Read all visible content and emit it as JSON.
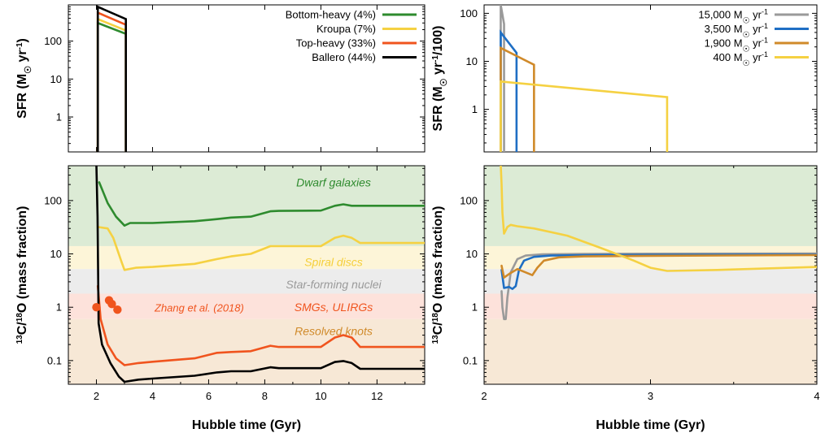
{
  "chart_data": [
    {
      "id": "top-left",
      "type": "line",
      "ylabel": "SFR (M☉ yr⁻¹)",
      "yscale": "log",
      "xlim": [
        1.0,
        13.7
      ],
      "ylim": [
        0.12,
        900
      ],
      "yticks": [
        {
          "v": 1,
          "label": "1"
        },
        {
          "v": 10,
          "label": "10"
        },
        {
          "v": 100,
          "label": "100"
        }
      ],
      "legend": {
        "position": "top-right",
        "entries": [
          {
            "label": "Bottom-heavy (4%)",
            "color": "#2e8b2e"
          },
          {
            "label": "Kroupa (7%)",
            "color": "#f5d142"
          },
          {
            "label": "Top-heavy (33%)",
            "color": "#f0541e"
          },
          {
            "label": "Ballero (44%)",
            "color": "#000000"
          }
        ]
      },
      "series": [
        {
          "name": "Bottom-heavy (4%)",
          "color": "#2e8b2e",
          "points": [
            [
              2.05,
              300
            ],
            [
              3.05,
              155
            ]
          ]
        },
        {
          "name": "Kroupa (7%)",
          "color": "#f5d142",
          "points": [
            [
              2.05,
              380
            ],
            [
              3.05,
              190
            ]
          ]
        },
        {
          "name": "Top-heavy (33%)",
          "color": "#f0541e",
          "points": [
            [
              2.05,
              560
            ],
            [
              3.05,
              270
            ]
          ]
        },
        {
          "name": "Ballero (44%)",
          "color": "#000000",
          "points": [
            [
              2.05,
              800
            ],
            [
              3.05,
              380
            ]
          ]
        }
      ],
      "verticals": [
        2.05,
        3.05
      ]
    },
    {
      "id": "top-right",
      "type": "line",
      "ylabel": "SFR (M☉ yr⁻¹/100)",
      "yscale": "log",
      "xlim": [
        2.0,
        4.0
      ],
      "ylim": [
        0.13,
        150
      ],
      "yticks": [
        {
          "v": 1,
          "label": "1"
        },
        {
          "v": 10,
          "label": "10"
        },
        {
          "v": 100,
          "label": "100"
        }
      ],
      "legend": {
        "position": "top-right",
        "entries": [
          {
            "label": "15,000 M☉ yr⁻¹",
            "color": "#9a9a9a"
          },
          {
            "label": "3,500 M☉ yr⁻¹",
            "color": "#1f6fc4"
          },
          {
            "label": "1,900 M☉ yr⁻¹",
            "color": "#d08a2a"
          },
          {
            "label": "400 M☉ yr⁻¹",
            "color": "#f5d142"
          }
        ]
      },
      "series": [
        {
          "name": "15,000 M☉ yr⁻¹",
          "color": "#9a9a9a",
          "points": [
            [
              2.1,
              150
            ],
            [
              2.12,
              60
            ]
          ],
          "end": 2.12
        },
        {
          "name": "3,500 M☉ yr⁻¹",
          "color": "#1f6fc4",
          "points": [
            [
              2.1,
              40
            ],
            [
              2.195,
              15
            ]
          ],
          "end": 2.195
        },
        {
          "name": "1,900 M☉ yr⁻¹",
          "color": "#d08a2a",
          "points": [
            [
              2.1,
              19
            ],
            [
              2.3,
              8.5
            ]
          ],
          "end": 2.3
        },
        {
          "name": "400 M☉ yr⁻¹",
          "color": "#f5d142",
          "points": [
            [
              2.1,
              3.8
            ],
            [
              3.1,
              1.8
            ]
          ],
          "end": 3.1
        }
      ]
    },
    {
      "id": "bottom-left",
      "type": "line",
      "xlabel": "Hubble time (Gyr)",
      "ylabel": "¹³C/¹⁸O (mass fraction)",
      "yscale": "log",
      "xlim": [
        1.0,
        13.7
      ],
      "ylim": [
        0.036,
        450
      ],
      "xticks": [
        {
          "v": 2,
          "label": "2"
        },
        {
          "v": 4,
          "label": "4"
        },
        {
          "v": 6,
          "label": "6"
        },
        {
          "v": 8,
          "label": "8"
        },
        {
          "v": 10,
          "label": "10"
        },
        {
          "v": 12,
          "label": "12"
        }
      ],
      "yticks": [
        {
          "v": 0.1,
          "label": "0.1"
        },
        {
          "v": 1,
          "label": "1"
        },
        {
          "v": 10,
          "label": "10"
        },
        {
          "v": 100,
          "label": "100"
        }
      ],
      "bands": [
        {
          "label": "Dwarf galaxies",
          "lo": 14,
          "hi": 450,
          "fill": "#dcebd5",
          "text_color": "#2e8b2e",
          "label_y": 220
        },
        {
          "label": "Spiral discs",
          "lo": 5.2,
          "hi": 14,
          "fill": "#fdf5d8",
          "text_color": "#f5cf3a",
          "label_y": 7
        },
        {
          "label": "Star-forming nuclei",
          "lo": 1.8,
          "hi": 5.2,
          "fill": "#ececec",
          "text_color": "#9a9a9a",
          "label_y": 2.7
        },
        {
          "label": "SMGs, ULIRGs",
          "lo": 0.6,
          "hi": 1.8,
          "fill": "#fde2db",
          "text_color": "#f0541e",
          "label_y": 1.0
        },
        {
          "label": "Resolved knots",
          "lo": 0.036,
          "hi": 0.6,
          "fill": "#f7e8d6",
          "text_color": "#d08a2a",
          "label_y": 0.36
        }
      ],
      "annotation": {
        "label": "Zhang et al. (2018)",
        "color": "#f0541e"
      },
      "observations": [
        {
          "x": 2.0,
          "y": 1.0
        },
        {
          "x": 2.45,
          "y": 1.35
        },
        {
          "x": 2.55,
          "y": 1.15
        },
        {
          "x": 2.75,
          "y": 0.9
        }
      ],
      "series": [
        {
          "name": "Bottom-heavy (4%)",
          "color": "#2e8b2e",
          "points": [
            [
              2.1,
              220
            ],
            [
              2.4,
              90
            ],
            [
              2.7,
              50
            ],
            [
              3.0,
              34
            ],
            [
              3.2,
              38
            ],
            [
              4,
              38
            ],
            [
              5.5,
              41
            ],
            [
              6.3,
              45
            ],
            [
              6.8,
              48
            ],
            [
              7.5,
              50
            ],
            [
              8.2,
              63
            ],
            [
              8.5,
              64
            ],
            [
              10.0,
              65
            ],
            [
              10.5,
              80
            ],
            [
              10.8,
              85
            ],
            [
              11.1,
              80
            ],
            [
              11.4,
              80
            ],
            [
              13.7,
              80
            ]
          ]
        },
        {
          "name": "Kroupa (7%)",
          "color": "#f5d142",
          "points": [
            [
              2.05,
              32
            ],
            [
              2.4,
              30
            ],
            [
              2.6,
              20
            ],
            [
              2.9,
              7
            ],
            [
              3.0,
              5
            ],
            [
              3.4,
              5.5
            ],
            [
              4,
              5.7
            ],
            [
              5.5,
              6.5
            ],
            [
              6.3,
              8
            ],
            [
              6.8,
              9
            ],
            [
              7.5,
              10
            ],
            [
              8.2,
              14
            ],
            [
              8.5,
              14
            ],
            [
              10.0,
              14
            ],
            [
              10.5,
              20
            ],
            [
              10.8,
              22
            ],
            [
              11.1,
              20
            ],
            [
              11.4,
              16
            ],
            [
              13.7,
              16
            ]
          ]
        },
        {
          "name": "Top-heavy (33%)",
          "color": "#f0541e",
          "points": [
            [
              2.05,
              2.5
            ],
            [
              2.15,
              0.6
            ],
            [
              2.4,
              0.2
            ],
            [
              2.7,
              0.11
            ],
            [
              3.0,
              0.082
            ],
            [
              3.5,
              0.09
            ],
            [
              4,
              0.095
            ],
            [
              5.5,
              0.11
            ],
            [
              6.3,
              0.14
            ],
            [
              6.8,
              0.145
            ],
            [
              7.5,
              0.15
            ],
            [
              8.2,
              0.19
            ],
            [
              8.5,
              0.18
            ],
            [
              10.0,
              0.18
            ],
            [
              10.5,
              0.27
            ],
            [
              10.8,
              0.3
            ],
            [
              11.1,
              0.27
            ],
            [
              11.4,
              0.18
            ],
            [
              13.7,
              0.18
            ]
          ]
        },
        {
          "name": "Ballero (44%)",
          "color": "#000000",
          "points": [
            [
              2.0,
              450
            ],
            [
              2.04,
              50
            ],
            [
              2.08,
              0.5
            ],
            [
              2.2,
              0.2
            ],
            [
              2.5,
              0.09
            ],
            [
              2.8,
              0.05
            ],
            [
              3.0,
              0.04
            ],
            [
              3.5,
              0.044
            ],
            [
              4,
              0.046
            ],
            [
              5.5,
              0.052
            ],
            [
              6.3,
              0.06
            ],
            [
              6.8,
              0.063
            ],
            [
              7.5,
              0.063
            ],
            [
              8.2,
              0.075
            ],
            [
              8.5,
              0.072
            ],
            [
              10.0,
              0.072
            ],
            [
              10.5,
              0.094
            ],
            [
              10.8,
              0.098
            ],
            [
              11.1,
              0.09
            ],
            [
              11.4,
              0.07
            ],
            [
              13.7,
              0.07
            ]
          ]
        }
      ]
    },
    {
      "id": "bottom-right",
      "type": "line",
      "xlabel": "Hubble time (Gyr)",
      "ylabel": "¹³C/¹⁸O (mass fraction)",
      "yscale": "log",
      "xlim": [
        2.0,
        4.0
      ],
      "ylim": [
        0.036,
        450
      ],
      "xticks": [
        {
          "v": 2,
          "label": "2"
        },
        {
          "v": 3,
          "label": "3"
        },
        {
          "v": 4,
          "label": "4"
        }
      ],
      "yticks": [
        {
          "v": 0.1,
          "label": "0.1"
        },
        {
          "v": 1,
          "label": "1"
        },
        {
          "v": 10,
          "label": "10"
        },
        {
          "v": 100,
          "label": "100"
        }
      ],
      "bands": [
        {
          "lo": 14,
          "hi": 450,
          "fill": "#dcebd5"
        },
        {
          "lo": 5.2,
          "hi": 14,
          "fill": "#fdf5d8"
        },
        {
          "lo": 1.8,
          "hi": 5.2,
          "fill": "#ececec"
        },
        {
          "lo": 0.6,
          "hi": 1.8,
          "fill": "#fde2db"
        },
        {
          "lo": 0.036,
          "hi": 0.6,
          "fill": "#f7e8d6"
        }
      ],
      "series": [
        {
          "name": "15,000 M☉ yr⁻¹",
          "color": "#9a9a9a",
          "points": [
            [
              2.105,
              2.0
            ],
            [
              2.11,
              1.0
            ],
            [
              2.12,
              0.6
            ],
            [
              2.13,
              0.6
            ],
            [
              2.14,
              1.5
            ],
            [
              2.16,
              4.5
            ],
            [
              2.2,
              8
            ],
            [
              2.25,
              9.3
            ],
            [
              2.35,
              9.8
            ],
            [
              2.6,
              10
            ],
            [
              3.0,
              10.1
            ],
            [
              4.0,
              10.2
            ]
          ]
        },
        {
          "name": "3,500 M☉ yr⁻¹",
          "color": "#1f6fc4",
          "points": [
            [
              2.105,
              5
            ],
            [
              2.12,
              2.3
            ],
            [
              2.15,
              2.4
            ],
            [
              2.17,
              2.2
            ],
            [
              2.19,
              2.5
            ],
            [
              2.21,
              5
            ],
            [
              2.24,
              7.5
            ],
            [
              2.3,
              8.8
            ],
            [
              2.4,
              9.3
            ],
            [
              2.6,
              9.5
            ],
            [
              3.0,
              9.6
            ],
            [
              4.0,
              9.7
            ]
          ]
        },
        {
          "name": "1,900 M☉ yr⁻¹",
          "color": "#d08a2a",
          "points": [
            [
              2.105,
              6
            ],
            [
              2.12,
              3.6
            ],
            [
              2.15,
              4.2
            ],
            [
              2.2,
              5.2
            ],
            [
              2.25,
              4.5
            ],
            [
              2.29,
              4.0
            ],
            [
              2.32,
              5.5
            ],
            [
              2.36,
              7.5
            ],
            [
              2.45,
              8.6
            ],
            [
              2.6,
              9.0
            ],
            [
              3.0,
              9.2
            ],
            [
              4.0,
              9.5
            ]
          ]
        },
        {
          "name": "400 M☉ yr⁻¹",
          "color": "#f5d142",
          "points": [
            [
              2.1,
              450
            ],
            [
              2.105,
              200
            ],
            [
              2.11,
              60
            ],
            [
              2.12,
              24
            ],
            [
              2.14,
              32
            ],
            [
              2.16,
              35
            ],
            [
              2.2,
              33
            ],
            [
              2.3,
              30
            ],
            [
              2.5,
              22
            ],
            [
              2.7,
              13
            ],
            [
              2.9,
              7.5
            ],
            [
              3.0,
              5.5
            ],
            [
              3.1,
              4.8
            ],
            [
              3.4,
              5.0
            ],
            [
              4.0,
              5.7
            ]
          ]
        }
      ]
    }
  ]
}
